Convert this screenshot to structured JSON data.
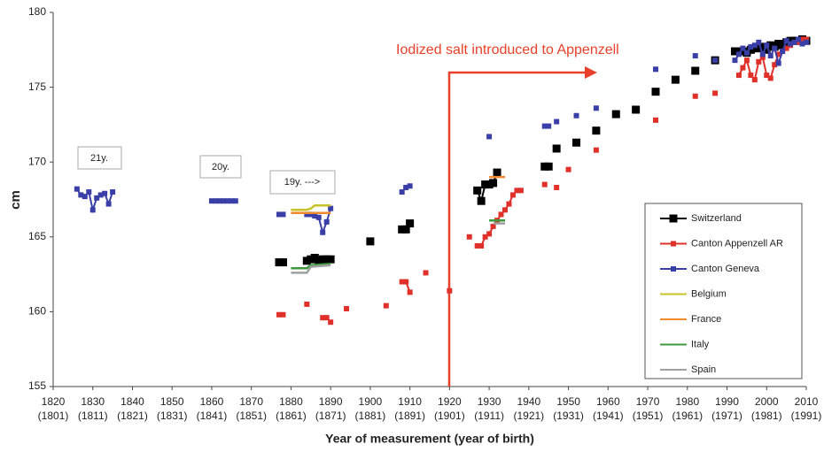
{
  "chart_data": {
    "type": "line",
    "x_label": "Year of measurement (year of birth)",
    "y_label": "cm",
    "xlim": [
      1820,
      2010
    ],
    "ylim": [
      155,
      180
    ],
    "yticks": [
      155,
      160,
      165,
      170,
      175,
      180
    ],
    "xticks": [
      {
        "value": 1820,
        "label": "1820\n(1801)"
      },
      {
        "value": 1830,
        "label": "1830\n(1811)"
      },
      {
        "value": 1840,
        "label": "1840\n(1821)"
      },
      {
        "value": 1850,
        "label": "1850\n(1831)"
      },
      {
        "value": 1860,
        "label": "1860\n(1841)"
      },
      {
        "value": 1870,
        "label": "1870\n(1851)"
      },
      {
        "value": 1880,
        "label": "1880\n(1861)"
      },
      {
        "value": 1890,
        "label": "1890\n(1871)"
      },
      {
        "value": 1900,
        "label": "1900\n(1881)"
      },
      {
        "value": 1910,
        "label": "1910\n(1891)"
      },
      {
        "value": 1920,
        "label": "1920\n(1901)"
      },
      {
        "value": 1930,
        "label": "1930\n(1911)"
      },
      {
        "value": 1940,
        "label": "1940\n(1921)"
      },
      {
        "value": 1950,
        "label": "1950\n(1931)"
      },
      {
        "value": 1960,
        "label": "1960\n(1941)"
      },
      {
        "value": 1970,
        "label": "1970\n(1951)"
      },
      {
        "value": 1980,
        "label": "1980\n(1961)"
      },
      {
        "value": 1990,
        "label": "1990\n(1971)"
      },
      {
        "value": 2000,
        "label": "2000\n(1981)"
      },
      {
        "value": 2010,
        "label": "2010\n(1991)"
      }
    ],
    "grid": false,
    "legend": "lower right",
    "annotations": [
      "21y.",
      "20y.",
      "19y. --->",
      "Iodized salt introduced to Appenzell"
    ],
    "series": [
      {
        "name": "Switzerland",
        "color": "#000000",
        "marker": true,
        "marker_size": 9,
        "x": [
          1877,
          1878,
          1880,
          1884,
          1885,
          1886,
          1887,
          1888,
          1889,
          1890,
          1895,
          1900,
          1905,
          1908,
          1909,
          1910,
          1920,
          1927,
          1928,
          1929,
          1930,
          1931,
          1932,
          1940,
          1944,
          1945,
          1946,
          1947,
          1950,
          1952,
          1955,
          1957,
          1960,
          1962,
          1965,
          1967,
          1970,
          1972,
          1975,
          1977,
          1980,
          1982,
          1985,
          1987,
          1990,
          1992,
          1993,
          1994,
          1995,
          1996,
          1997,
          1998,
          1999,
          2000,
          2001,
          2002,
          2003,
          2004,
          2005,
          2006,
          2007,
          2008,
          2009,
          2010
        ],
        "values": [
          163.3,
          163.3,
          null,
          163.4,
          163.5,
          163.6,
          163.4,
          163.5,
          163.5,
          163.5,
          null,
          164.7,
          null,
          165.5,
          165.5,
          165.9,
          null,
          168.1,
          167.4,
          168.5,
          168.5,
          168.6,
          169.3,
          null,
          169.7,
          169.7,
          null,
          170.9,
          null,
          171.3,
          null,
          172.1,
          null,
          173.2,
          null,
          173.5,
          null,
          174.7,
          null,
          175.5,
          null,
          176.1,
          null,
          176.8,
          null,
          177.4,
          177.4,
          177.4,
          177.3,
          177.5,
          177.6,
          177.6,
          177.7,
          177.5,
          177.8,
          177.7,
          177.9,
          177.8,
          178.0,
          178.1,
          178.1,
          178.1,
          178.2,
          178.1
        ]
      },
      {
        "name": "Canton Appenzell AR",
        "color": "#e0302a",
        "marker": true,
        "marker_size": 6,
        "x": [
          1877,
          1878,
          1880,
          1884,
          1886,
          1888,
          1889,
          1890,
          1892,
          1894,
          1900,
          1904,
          1906,
          1908,
          1909,
          1910,
          1912,
          1914,
          1917,
          1920,
          1922,
          1925,
          1926,
          1927,
          1928,
          1929,
          1930,
          1931,
          1932,
          1933,
          1934,
          1935,
          1936,
          1937,
          1938,
          1940,
          1944,
          1946,
          1947,
          1948,
          1950,
          1952,
          1957,
          1960,
          1972,
          1975,
          1982,
          1985,
          1987,
          1990,
          1993,
          1994,
          1995,
          1996,
          1997,
          1998,
          1999,
          2000,
          2001,
          2002,
          2003,
          2004,
          2005,
          2006,
          2007,
          2008,
          2009,
          2010
        ],
        "values": [
          159.8,
          159.8,
          null,
          160.5,
          null,
          159.6,
          159.6,
          159.3,
          null,
          160.2,
          null,
          160.4,
          null,
          162.0,
          162.0,
          161.3,
          null,
          162.6,
          null,
          161.4,
          null,
          165.0,
          null,
          164.4,
          164.4,
          165.0,
          165.2,
          165.7,
          166.1,
          166.5,
          166.8,
          167.2,
          167.8,
          168.1,
          168.1,
          null,
          168.5,
          null,
          168.3,
          null,
          169.5,
          null,
          170.8,
          null,
          172.8,
          null,
          174.4,
          null,
          174.6,
          null,
          175.8,
          176.3,
          176.8,
          175.8,
          175.5,
          176.7,
          177.0,
          175.8,
          175.6,
          176.5,
          177.2,
          177.4,
          177.6,
          177.8,
          178.0,
          178.0,
          178.2,
          178.2
        ]
      },
      {
        "name": "Canton Geneva",
        "color": "#3a3fa8",
        "marker": true,
        "marker_size": 6,
        "x": [
          1826,
          1827,
          1828,
          1829,
          1830,
          1831,
          1832,
          1833,
          1834,
          1835,
          1845,
          1860,
          1861,
          1862,
          1863,
          1864,
          1865,
          1866,
          1870,
          1877,
          1878,
          1880,
          1884,
          1885,
          1886,
          1887,
          1888,
          1889,
          1890,
          1900,
          1908,
          1909,
          1910,
          1920,
          1930,
          1940,
          1944,
          1945,
          1946,
          1947,
          1950,
          1952,
          1955,
          1957,
          1965,
          1972,
          1977,
          1982,
          1985,
          1987,
          1990,
          1992,
          1993,
          1994,
          1995,
          1996,
          1997,
          1998,
          1999,
          2000,
          2001,
          2002,
          2003,
          2004,
          2005,
          2006,
          2007,
          2008,
          2009,
          2010
        ],
        "values": [
          168.2,
          167.8,
          167.7,
          168.0,
          166.8,
          167.6,
          167.8,
          167.9,
          167.2,
          168.0,
          null,
          167.4,
          167.4,
          167.4,
          167.4,
          167.4,
          167.4,
          167.4,
          null,
          166.5,
          166.5,
          null,
          166.5,
          166.5,
          166.4,
          166.3,
          165.3,
          166.0,
          166.9,
          null,
          168.0,
          168.3,
          168.4,
          null,
          171.7,
          null,
          172.4,
          172.4,
          null,
          172.7,
          null,
          173.1,
          null,
          173.6,
          null,
          176.2,
          null,
          177.1,
          null,
          176.8,
          null,
          176.8,
          177.2,
          177.6,
          177.3,
          177.7,
          177.8,
          178.0,
          177.2,
          177.8,
          177.1,
          177.6,
          176.6,
          177.4,
          178.1,
          177.9,
          178.0,
          178.2,
          177.9,
          178.0
        ]
      },
      {
        "name": "Belgium",
        "color": "#c8c227",
        "marker": false,
        "x": [
          1880,
          1884,
          1885,
          1886,
          1890
        ],
        "values": [
          166.8,
          166.8,
          166.9,
          167.1,
          167.1
        ]
      },
      {
        "name": "France",
        "color": "#f08a2c",
        "marker": false,
        "x": [
          1880,
          1890,
          1910,
          1930,
          1934
        ],
        "values": [
          166.6,
          166.6,
          null,
          169.0,
          169.0
        ]
      },
      {
        "name": "Italy",
        "color": "#3c9a3c",
        "marker": false,
        "x": [
          1880,
          1884,
          1885,
          1890,
          1910,
          1930,
          1934
        ],
        "values": [
          162.9,
          162.9,
          163.1,
          163.2,
          null,
          166.1,
          166.1
        ]
      },
      {
        "name": "Spain",
        "color": "#a0a0a0",
        "marker": false,
        "x": [
          1880,
          1884,
          1885,
          1890,
          1910,
          1931,
          1934
        ],
        "values": [
          162.6,
          162.6,
          163.0,
          163.1,
          null,
          165.9,
          165.9
        ]
      }
    ]
  }
}
